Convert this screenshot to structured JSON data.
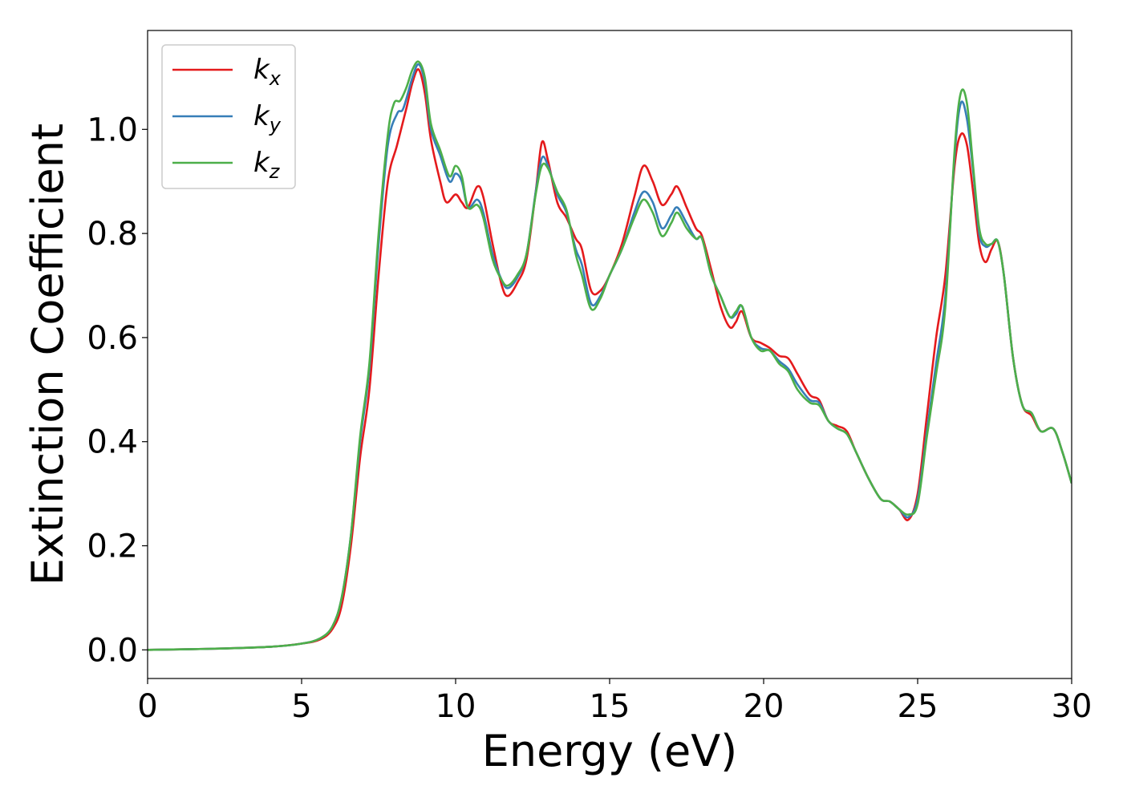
{
  "chart_data": {
    "type": "line",
    "xlabel": "Energy (eV)",
    "ylabel": "Extinction Coefficient",
    "xlim": [
      0,
      30
    ],
    "ylim": [
      -0.055,
      1.19
    ],
    "xticks": [
      0,
      5,
      10,
      15,
      20,
      25,
      30
    ],
    "xtick_labels": [
      "0",
      "5",
      "10",
      "15",
      "20",
      "25",
      "30"
    ],
    "yticks": [
      0.0,
      0.2,
      0.4,
      0.6,
      0.8,
      1.0
    ],
    "ytick_labels": [
      "0.0",
      "0.2",
      "0.4",
      "0.6",
      "0.8",
      "1.0"
    ],
    "grid": false,
    "legend_position": "top-left",
    "series": [
      {
        "name": "k",
        "subscript": "x",
        "color": "#e41a1c",
        "points": [
          [
            0,
            0.0
          ],
          [
            2,
            0.002
          ],
          [
            4,
            0.006
          ],
          [
            5,
            0.012
          ],
          [
            5.6,
            0.02
          ],
          [
            6.0,
            0.04
          ],
          [
            6.3,
            0.085
          ],
          [
            6.6,
            0.2
          ],
          [
            6.9,
            0.37
          ],
          [
            7.2,
            0.5
          ],
          [
            7.5,
            0.72
          ],
          [
            7.8,
            0.9
          ],
          [
            8.1,
            0.97
          ],
          [
            8.4,
            1.04
          ],
          [
            8.6,
            1.09
          ],
          [
            8.8,
            1.115
          ],
          [
            9.0,
            1.07
          ],
          [
            9.2,
            0.98
          ],
          [
            9.5,
            0.9
          ],
          [
            9.7,
            0.86
          ],
          [
            10.0,
            0.875
          ],
          [
            10.2,
            0.86
          ],
          [
            10.4,
            0.85
          ],
          [
            10.7,
            0.89
          ],
          [
            10.9,
            0.87
          ],
          [
            11.2,
            0.78
          ],
          [
            11.5,
            0.7
          ],
          [
            11.7,
            0.68
          ],
          [
            12.0,
            0.705
          ],
          [
            12.3,
            0.75
          ],
          [
            12.6,
            0.88
          ],
          [
            12.8,
            0.975
          ],
          [
            13.0,
            0.94
          ],
          [
            13.3,
            0.86
          ],
          [
            13.6,
            0.83
          ],
          [
            13.9,
            0.79
          ],
          [
            14.1,
            0.77
          ],
          [
            14.4,
            0.69
          ],
          [
            14.7,
            0.69
          ],
          [
            15.0,
            0.72
          ],
          [
            15.4,
            0.78
          ],
          [
            15.8,
            0.87
          ],
          [
            16.1,
            0.93
          ],
          [
            16.4,
            0.9
          ],
          [
            16.7,
            0.855
          ],
          [
            17.0,
            0.875
          ],
          [
            17.2,
            0.89
          ],
          [
            17.5,
            0.85
          ],
          [
            17.8,
            0.81
          ],
          [
            18.0,
            0.795
          ],
          [
            18.3,
            0.73
          ],
          [
            18.6,
            0.66
          ],
          [
            18.9,
            0.62
          ],
          [
            19.1,
            0.63
          ],
          [
            19.3,
            0.65
          ],
          [
            19.6,
            0.6
          ],
          [
            19.9,
            0.59
          ],
          [
            20.2,
            0.58
          ],
          [
            20.5,
            0.565
          ],
          [
            20.8,
            0.56
          ],
          [
            21.1,
            0.53
          ],
          [
            21.5,
            0.49
          ],
          [
            21.8,
            0.48
          ],
          [
            22.1,
            0.44
          ],
          [
            22.4,
            0.43
          ],
          [
            22.7,
            0.42
          ],
          [
            23.0,
            0.38
          ],
          [
            23.4,
            0.33
          ],
          [
            23.8,
            0.29
          ],
          [
            24.1,
            0.285
          ],
          [
            24.4,
            0.27
          ],
          [
            24.7,
            0.25
          ],
          [
            25.0,
            0.3
          ],
          [
            25.3,
            0.45
          ],
          [
            25.6,
            0.6
          ],
          [
            25.9,
            0.72
          ],
          [
            26.2,
            0.93
          ],
          [
            26.4,
            0.99
          ],
          [
            26.6,
            0.97
          ],
          [
            26.8,
            0.88
          ],
          [
            27.0,
            0.78
          ],
          [
            27.2,
            0.745
          ],
          [
            27.4,
            0.77
          ],
          [
            27.6,
            0.785
          ],
          [
            27.8,
            0.72
          ],
          [
            28.1,
            0.56
          ],
          [
            28.4,
            0.47
          ],
          [
            28.7,
            0.45
          ],
          [
            29.0,
            0.42
          ],
          [
            29.4,
            0.425
          ],
          [
            29.7,
            0.38
          ],
          [
            30.0,
            0.32
          ]
        ]
      },
      {
        "name": "k",
        "subscript": "y",
        "color": "#377eb8",
        "points": [
          [
            0,
            0.0
          ],
          [
            2,
            0.002
          ],
          [
            4,
            0.006
          ],
          [
            5,
            0.012
          ],
          [
            5.6,
            0.022
          ],
          [
            6.0,
            0.045
          ],
          [
            6.3,
            0.1
          ],
          [
            6.6,
            0.22
          ],
          [
            6.9,
            0.4
          ],
          [
            7.2,
            0.54
          ],
          [
            7.5,
            0.78
          ],
          [
            7.8,
            0.97
          ],
          [
            8.1,
            1.03
          ],
          [
            8.3,
            1.04
          ],
          [
            8.6,
            1.1
          ],
          [
            8.8,
            1.125
          ],
          [
            9.0,
            1.09
          ],
          [
            9.2,
            1.0
          ],
          [
            9.5,
            0.95
          ],
          [
            9.8,
            0.9
          ],
          [
            10.0,
            0.915
          ],
          [
            10.2,
            0.9
          ],
          [
            10.4,
            0.85
          ],
          [
            10.7,
            0.865
          ],
          [
            10.9,
            0.84
          ],
          [
            11.2,
            0.76
          ],
          [
            11.5,
            0.71
          ],
          [
            11.7,
            0.695
          ],
          [
            12.0,
            0.715
          ],
          [
            12.3,
            0.76
          ],
          [
            12.6,
            0.88
          ],
          [
            12.8,
            0.945
          ],
          [
            13.0,
            0.93
          ],
          [
            13.3,
            0.875
          ],
          [
            13.6,
            0.84
          ],
          [
            13.9,
            0.77
          ],
          [
            14.1,
            0.74
          ],
          [
            14.4,
            0.665
          ],
          [
            14.7,
            0.68
          ],
          [
            15.0,
            0.72
          ],
          [
            15.4,
            0.77
          ],
          [
            15.8,
            0.84
          ],
          [
            16.1,
            0.88
          ],
          [
            16.4,
            0.86
          ],
          [
            16.7,
            0.81
          ],
          [
            17.0,
            0.835
          ],
          [
            17.2,
            0.85
          ],
          [
            17.5,
            0.82
          ],
          [
            17.8,
            0.79
          ],
          [
            18.0,
            0.79
          ],
          [
            18.3,
            0.72
          ],
          [
            18.6,
            0.68
          ],
          [
            18.9,
            0.64
          ],
          [
            19.1,
            0.645
          ],
          [
            19.3,
            0.66
          ],
          [
            19.6,
            0.6
          ],
          [
            19.9,
            0.58
          ],
          [
            20.2,
            0.575
          ],
          [
            20.5,
            0.555
          ],
          [
            20.8,
            0.54
          ],
          [
            21.1,
            0.51
          ],
          [
            21.5,
            0.48
          ],
          [
            21.8,
            0.475
          ],
          [
            22.1,
            0.44
          ],
          [
            22.4,
            0.425
          ],
          [
            22.7,
            0.415
          ],
          [
            23.0,
            0.38
          ],
          [
            23.4,
            0.33
          ],
          [
            23.8,
            0.29
          ],
          [
            24.1,
            0.285
          ],
          [
            24.4,
            0.27
          ],
          [
            24.7,
            0.255
          ],
          [
            25.0,
            0.29
          ],
          [
            25.3,
            0.42
          ],
          [
            25.6,
            0.55
          ],
          [
            25.9,
            0.68
          ],
          [
            26.2,
            0.95
          ],
          [
            26.4,
            1.05
          ],
          [
            26.6,
            1.02
          ],
          [
            26.8,
            0.92
          ],
          [
            27.0,
            0.8
          ],
          [
            27.2,
            0.775
          ],
          [
            27.4,
            0.78
          ],
          [
            27.6,
            0.785
          ],
          [
            27.8,
            0.72
          ],
          [
            28.1,
            0.56
          ],
          [
            28.4,
            0.47
          ],
          [
            28.7,
            0.455
          ],
          [
            29.0,
            0.42
          ],
          [
            29.4,
            0.425
          ],
          [
            29.7,
            0.38
          ],
          [
            30.0,
            0.32
          ]
        ]
      },
      {
        "name": "k",
        "subscript": "z",
        "color": "#4daf4a",
        "points": [
          [
            0,
            0.0
          ],
          [
            2,
            0.002
          ],
          [
            4,
            0.006
          ],
          [
            5,
            0.012
          ],
          [
            5.6,
            0.022
          ],
          [
            6.0,
            0.045
          ],
          [
            6.3,
            0.1
          ],
          [
            6.6,
            0.22
          ],
          [
            6.9,
            0.41
          ],
          [
            7.2,
            0.55
          ],
          [
            7.5,
            0.8
          ],
          [
            7.8,
            0.99
          ],
          [
            8.0,
            1.05
          ],
          [
            8.2,
            1.055
          ],
          [
            8.4,
            1.08
          ],
          [
            8.6,
            1.115
          ],
          [
            8.8,
            1.13
          ],
          [
            9.0,
            1.1
          ],
          [
            9.2,
            1.01
          ],
          [
            9.5,
            0.96
          ],
          [
            9.8,
            0.91
          ],
          [
            10.0,
            0.93
          ],
          [
            10.2,
            0.91
          ],
          [
            10.4,
            0.85
          ],
          [
            10.7,
            0.855
          ],
          [
            10.9,
            0.83
          ],
          [
            11.2,
            0.75
          ],
          [
            11.5,
            0.71
          ],
          [
            11.7,
            0.7
          ],
          [
            12.0,
            0.72
          ],
          [
            12.3,
            0.76
          ],
          [
            12.6,
            0.875
          ],
          [
            12.8,
            0.93
          ],
          [
            13.0,
            0.925
          ],
          [
            13.3,
            0.88
          ],
          [
            13.6,
            0.845
          ],
          [
            13.9,
            0.76
          ],
          [
            14.1,
            0.72
          ],
          [
            14.4,
            0.655
          ],
          [
            14.7,
            0.675
          ],
          [
            15.0,
            0.72
          ],
          [
            15.4,
            0.77
          ],
          [
            15.8,
            0.83
          ],
          [
            16.1,
            0.865
          ],
          [
            16.4,
            0.84
          ],
          [
            16.7,
            0.795
          ],
          [
            17.0,
            0.82
          ],
          [
            17.2,
            0.84
          ],
          [
            17.5,
            0.81
          ],
          [
            17.8,
            0.79
          ],
          [
            18.0,
            0.79
          ],
          [
            18.3,
            0.72
          ],
          [
            18.6,
            0.68
          ],
          [
            18.9,
            0.64
          ],
          [
            19.1,
            0.65
          ],
          [
            19.3,
            0.66
          ],
          [
            19.6,
            0.6
          ],
          [
            19.9,
            0.575
          ],
          [
            20.2,
            0.575
          ],
          [
            20.5,
            0.55
          ],
          [
            20.8,
            0.535
          ],
          [
            21.1,
            0.5
          ],
          [
            21.5,
            0.475
          ],
          [
            21.8,
            0.47
          ],
          [
            22.1,
            0.44
          ],
          [
            22.4,
            0.425
          ],
          [
            22.7,
            0.415
          ],
          [
            23.0,
            0.38
          ],
          [
            23.4,
            0.33
          ],
          [
            23.8,
            0.29
          ],
          [
            24.1,
            0.285
          ],
          [
            24.4,
            0.27
          ],
          [
            24.7,
            0.26
          ],
          [
            25.0,
            0.28
          ],
          [
            25.3,
            0.41
          ],
          [
            25.6,
            0.53
          ],
          [
            25.9,
            0.66
          ],
          [
            26.2,
            0.96
          ],
          [
            26.4,
            1.07
          ],
          [
            26.6,
            1.05
          ],
          [
            26.8,
            0.93
          ],
          [
            27.0,
            0.81
          ],
          [
            27.2,
            0.78
          ],
          [
            27.4,
            0.78
          ],
          [
            27.6,
            0.785
          ],
          [
            27.8,
            0.72
          ],
          [
            28.1,
            0.56
          ],
          [
            28.4,
            0.47
          ],
          [
            28.7,
            0.455
          ],
          [
            29.0,
            0.42
          ],
          [
            29.4,
            0.425
          ],
          [
            29.7,
            0.38
          ],
          [
            30.0,
            0.32
          ]
        ]
      }
    ]
  }
}
